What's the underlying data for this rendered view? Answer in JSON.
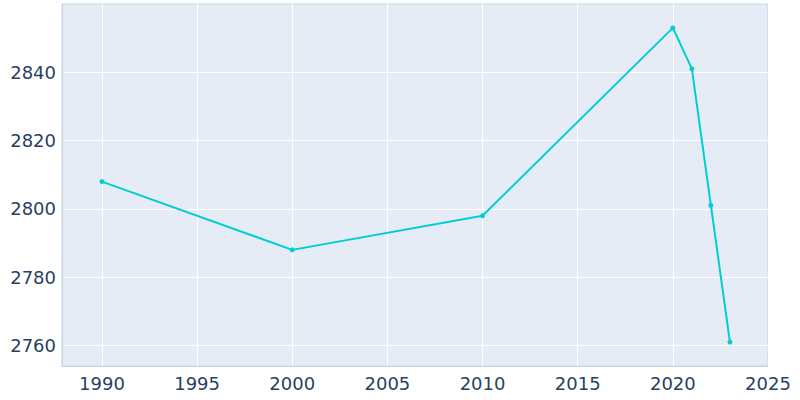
{
  "chart_data": {
    "type": "line",
    "x": [
      1990,
      2000,
      2010,
      2020,
      2021,
      2022,
      2023
    ],
    "values": [
      2808,
      2788,
      2798,
      2853,
      2841,
      2801,
      2761
    ],
    "color": "#00ced1",
    "marker": "circle",
    "xlim": [
      1987.9,
      2025
    ],
    "xticks": [
      1990,
      1995,
      2000,
      2005,
      2010,
      2015,
      2020,
      2025
    ],
    "ylim": [
      2754,
      2860
    ],
    "yticks": [
      2760,
      2780,
      2800,
      2820,
      2840
    ],
    "grid": true
  }
}
